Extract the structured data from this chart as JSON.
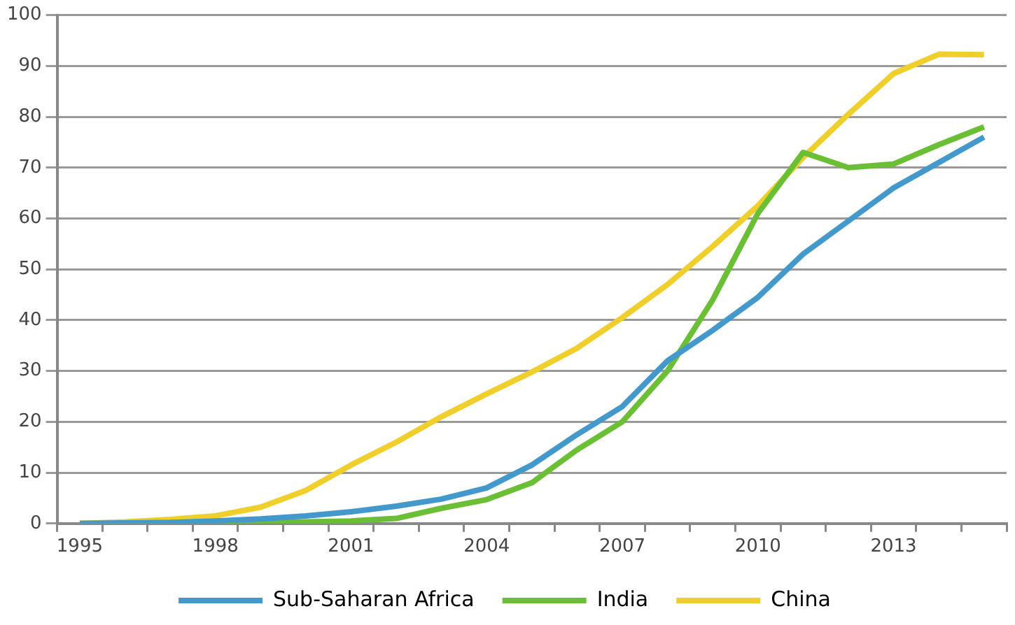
{
  "chart_data": {
    "type": "line",
    "categories": [
      "1995",
      null,
      null,
      "1998",
      null,
      null,
      "2001",
      null,
      null,
      "2004",
      null,
      null,
      "2007",
      null,
      null,
      "2010",
      null,
      null,
      "2013",
      null,
      null
    ],
    "series": [
      {
        "name": "Sub-Saharan Africa",
        "color": "#4499cc",
        "values": [
          0,
          0.1,
          0.2,
          0.5,
          0.9,
          1.5,
          2.3,
          3.4,
          4.8,
          7,
          11.5,
          17.5,
          23,
          32,
          38,
          44.5,
          53,
          59.5,
          66,
          71,
          76
        ]
      },
      {
        "name": "India",
        "color": "#6abf35",
        "values": [
          0,
          0,
          0,
          0.1,
          0.2,
          0.3,
          0.5,
          1,
          3,
          4.7,
          8,
          14.5,
          20,
          30,
          44,
          61,
          73,
          70,
          70.7,
          74.5,
          78
        ]
      },
      {
        "name": "China",
        "color": "#f0cf2c",
        "values": [
          0,
          0.3,
          0.8,
          1.5,
          3.2,
          6.5,
          11.5,
          16,
          21,
          25.5,
          29.8,
          34.5,
          40.5,
          47,
          54.5,
          62.5,
          72,
          80.5,
          88.5,
          92.3,
          92.2
        ]
      }
    ],
    "ylim": [
      0,
      100
    ],
    "yticks": [
      0,
      10,
      20,
      30,
      40,
      50,
      60,
      70,
      80,
      90,
      100
    ],
    "grid": "y",
    "legend": "bottom",
    "marker": "none",
    "line_style": "solid"
  }
}
